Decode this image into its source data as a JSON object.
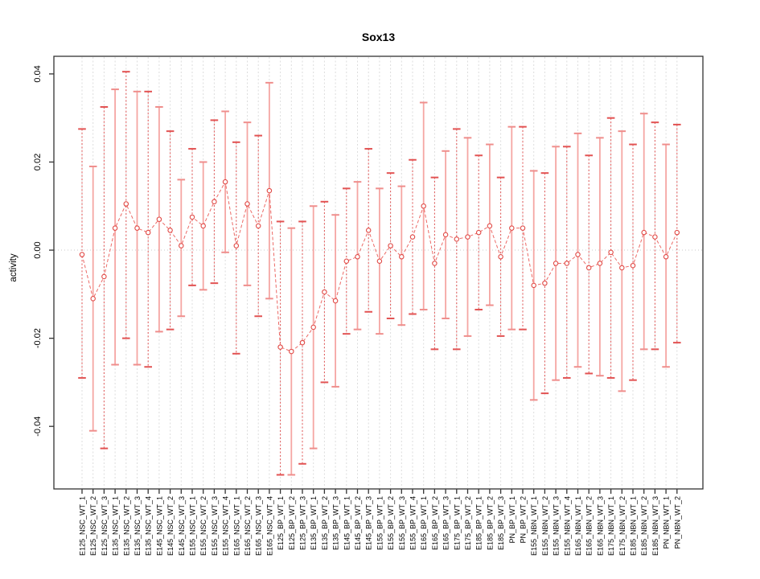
{
  "chart_data": {
    "type": "line",
    "subtype": "points-with-error-bars",
    "title": "Sox13",
    "xlabel": "",
    "ylabel": "activity",
    "ylim": [
      -0.0542,
      0.044
    ],
    "yticks": [
      0.04,
      0.02,
      0.0,
      -0.02,
      -0.04
    ],
    "ytick_labels": [
      "0.04",
      "0.02",
      "0.00",
      "-0.02",
      "-0.04"
    ],
    "grid": "vertical dashed gridline per category, dotted horizontal line at 0",
    "legend_position": "none",
    "categories": [
      "E125_NSC_WT_1",
      "E125_NSC_WT_2",
      "E125_NSC_WT_3",
      "E135_NSC_WT_1",
      "E135_NSC_WT_2",
      "E135_NSC_WT_3",
      "E135_NSC_WT_4",
      "E145_NSC_WT_1",
      "E145_NSC_WT_2",
      "E145_NSC_WT_3",
      "E155_NSC_WT_1",
      "E155_NSC_WT_2",
      "E155_NSC_WT_3",
      "E155_NSC_WT_4",
      "E165_NSC_WT_1",
      "E165_NSC_WT_2",
      "E165_NSC_WT_3",
      "E165_NSC_WT_4",
      "E125_BP_WT_1",
      "E125_BP_WT_2",
      "E125_BP_WT_3",
      "E135_BP_WT_1",
      "E135_BP_WT_2",
      "E135_BP_WT_3",
      "E145_BP_WT_1",
      "E145_BP_WT_2",
      "E145_BP_WT_3",
      "E155_BP_WT_1",
      "E155_BP_WT_2",
      "E155_BP_WT_3",
      "E155_BP_WT_4",
      "E165_BP_WT_1",
      "E165_BP_WT_2",
      "E165_BP_WT_3",
      "E175_BP_WT_1",
      "E175_BP_WT_2",
      "E185_BP_WT_1",
      "E185_BP_WT_2",
      "E185_BP_WT_3",
      "PN_BP_WT_1",
      "PN_BP_WT_2",
      "E155_NBN_WT_1",
      "E155_NBN_WT_2",
      "E155_NBN_WT_3",
      "E155_NBN_WT_4",
      "E165_NBN_WT_1",
      "E165_NBN_WT_2",
      "E165_NBN_WT_3",
      "E175_NBN_WT_1",
      "E175_NBN_WT_2",
      "E185_NBN_WT_1",
      "E185_NBN_WT_2",
      "E185_NBN_WT_3",
      "PN_NBN_WT_1",
      "PN_NBN_WT_2"
    ],
    "series": [
      {
        "name": "activity",
        "values": [
          -0.001,
          -0.011,
          -0.006,
          0.005,
          0.0105,
          0.005,
          0.004,
          0.007,
          0.0045,
          0.001,
          0.0075,
          0.0055,
          0.011,
          0.0155,
          0.001,
          0.0105,
          0.0055,
          0.0135,
          -0.022,
          -0.023,
          -0.021,
          -0.0175,
          -0.0095,
          -0.0115,
          -0.0025,
          -0.0015,
          0.0045,
          -0.0025,
          0.001,
          -0.0015,
          0.003,
          0.01,
          -0.003,
          0.0035,
          0.0025,
          0.003,
          0.004,
          0.0055,
          -0.0015,
          0.005,
          0.005,
          -0.008,
          -0.0075,
          -0.003,
          -0.003,
          -0.001,
          -0.004,
          -0.003,
          -0.0005,
          -0.004,
          -0.0035,
          0.004,
          0.003,
          -0.0015,
          0.004
        ],
        "error_high": [
          0.0275,
          0.019,
          0.0325,
          0.0365,
          0.0405,
          0.036,
          0.036,
          0.0325,
          0.027,
          0.016,
          0.023,
          0.02,
          0.0295,
          0.0315,
          0.0245,
          0.029,
          0.026,
          0.038,
          0.0065,
          0.005,
          0.0065,
          0.01,
          0.011,
          0.008,
          0.014,
          0.0155,
          0.023,
          0.014,
          0.0175,
          0.0145,
          0.0205,
          0.0335,
          0.0165,
          0.0225,
          0.0275,
          0.0255,
          0.0215,
          0.024,
          0.0165,
          0.028,
          0.028,
          0.018,
          0.0175,
          0.0235,
          0.0235,
          0.0265,
          0.0215,
          0.0255,
          0.03,
          0.027,
          0.024,
          0.031,
          0.029,
          0.024,
          0.0285
        ],
        "error_low": [
          -0.029,
          -0.041,
          -0.045,
          -0.026,
          -0.02,
          -0.026,
          -0.0265,
          -0.0185,
          -0.018,
          -0.015,
          -0.008,
          -0.009,
          -0.0075,
          -0.0005,
          -0.0235,
          -0.008,
          -0.015,
          -0.011,
          -0.051,
          -0.051,
          -0.0485,
          -0.045,
          -0.03,
          -0.031,
          -0.019,
          -0.018,
          -0.014,
          -0.019,
          -0.0155,
          -0.017,
          -0.0145,
          -0.0135,
          -0.0225,
          -0.0155,
          -0.0225,
          -0.0195,
          -0.0135,
          -0.0125,
          -0.0195,
          -0.018,
          -0.018,
          -0.034,
          -0.0325,
          -0.0295,
          -0.029,
          -0.0265,
          -0.028,
          -0.0285,
          -0.029,
          -0.032,
          -0.0295,
          -0.0225,
          -0.0225,
          -0.0265,
          -0.021
        ]
      }
    ],
    "colors": {
      "series": "#e14b47",
      "error_bar_dark": "#e25353",
      "error_bar_light": "#f5a6a3",
      "grid": "#dcdcdc",
      "zero_line": "#c8c8c8",
      "axis": "#333333"
    }
  }
}
